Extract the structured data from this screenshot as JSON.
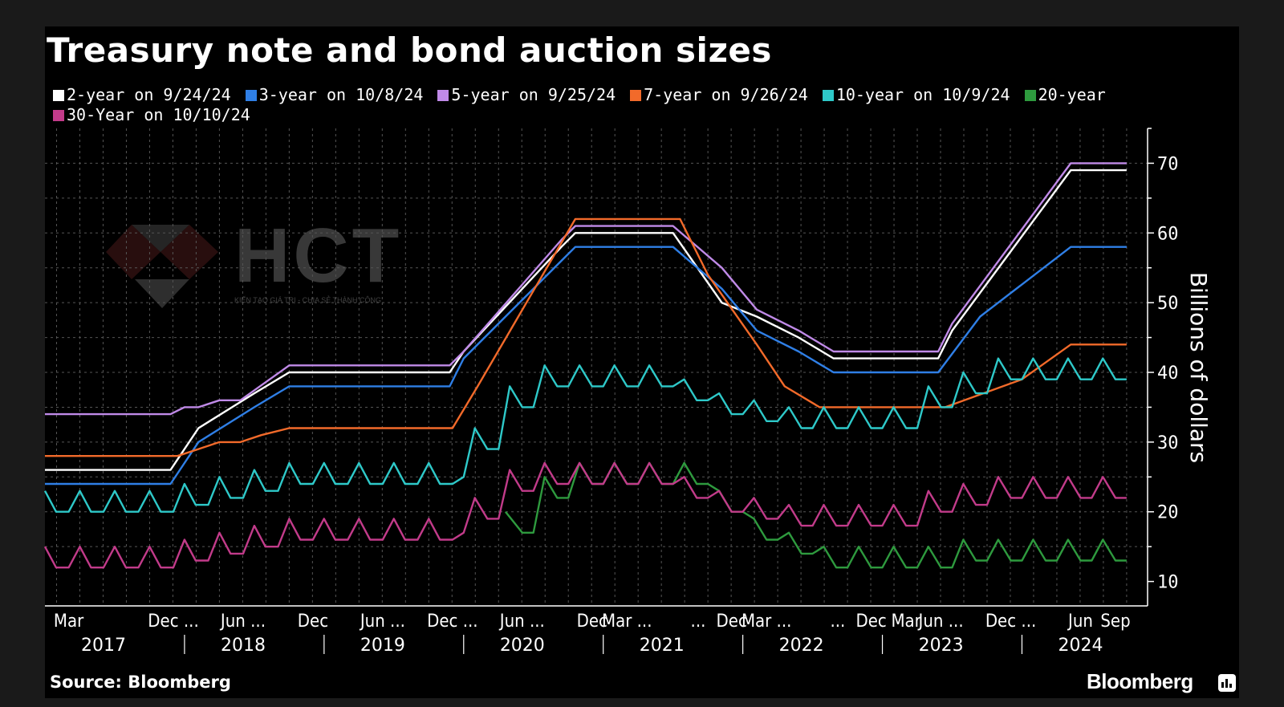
{
  "title": "Treasury note and bond auction sizes",
  "source": "Source: Bloomberg",
  "brand": "Bloomberg",
  "watermark": {
    "text": "HCT",
    "subtitle": "KIẾN TẠO GIÁ TRỊ - CHIA SẺ THÀNH CÔNG"
  },
  "chart_data": {
    "type": "line",
    "ylabel": "Billions of dollars",
    "ylim": [
      6.5,
      75
    ],
    "xlim": [
      2017.0,
      2024.9
    ],
    "yticks": [
      10,
      20,
      30,
      40,
      50,
      60,
      70
    ],
    "grid": true,
    "legend_position": "top",
    "x_tick_labels": [
      {
        "x": 2017.17,
        "label": "Mar"
      },
      {
        "x": 2017.92,
        "label": "Dec ..."
      },
      {
        "x": 2018.42,
        "label": "Jun ..."
      },
      {
        "x": 2018.92,
        "label": "Dec"
      },
      {
        "x": 2019.42,
        "label": "Jun ..."
      },
      {
        "x": 2019.92,
        "label": "Dec ..."
      },
      {
        "x": 2020.42,
        "label": "Jun ..."
      },
      {
        "x": 2020.92,
        "label": "Dec"
      },
      {
        "x": 2021.17,
        "label": "Mar ..."
      },
      {
        "x": 2021.68,
        "label": "..."
      },
      {
        "x": 2021.92,
        "label": "Dec"
      },
      {
        "x": 2022.17,
        "label": "Mar ..."
      },
      {
        "x": 2022.68,
        "label": "..."
      },
      {
        "x": 2022.92,
        "label": "Dec"
      },
      {
        "x": 2023.17,
        "label": "Mar"
      },
      {
        "x": 2023.42,
        "label": "Jun ..."
      },
      {
        "x": 2023.92,
        "label": "Dec ..."
      },
      {
        "x": 2024.42,
        "label": "Jun"
      },
      {
        "x": 2024.67,
        "label": "Sep"
      }
    ],
    "year_labels": [
      {
        "x": 2017.42,
        "label": "2017"
      },
      {
        "x": 2018.42,
        "label": "2018"
      },
      {
        "x": 2019.42,
        "label": "2019"
      },
      {
        "x": 2020.42,
        "label": "2020"
      },
      {
        "x": 2021.42,
        "label": "2021"
      },
      {
        "x": 2022.42,
        "label": "2022"
      },
      {
        "x": 2023.42,
        "label": "2023"
      },
      {
        "x": 2024.42,
        "label": "2024"
      }
    ],
    "year_dividers": [
      2018.0,
      2019.0,
      2020.0,
      2021.0,
      2022.0,
      2023.0,
      2024.0
    ],
    "series": [
      {
        "name": "2-year on 9/24/24",
        "color": "#ffffff",
        "x": [
          2017.0,
          2017.9,
          2018.1,
          2018.5,
          2018.75,
          2019.9,
          2020.0,
          2020.7,
          2020.8,
          2021.5,
          2021.85,
          2022.1,
          2022.4,
          2022.65,
          2023.4,
          2023.5,
          2024.35,
          2024.75
        ],
        "y": [
          26,
          26,
          32,
          37,
          40,
          40,
          43,
          58,
          60,
          60,
          50,
          48,
          45,
          42,
          42,
          46,
          69,
          69
        ]
      },
      {
        "name": "3-year on 10/8/24",
        "color": "#2f7fe6",
        "x": [
          2017.0,
          2017.9,
          2018.1,
          2018.5,
          2018.75,
          2019.9,
          2020.0,
          2020.7,
          2020.8,
          2021.5,
          2021.85,
          2022.1,
          2022.4,
          2022.65,
          2023.4,
          2023.7,
          2024.35,
          2024.75
        ],
        "y": [
          24,
          24,
          30,
          35,
          38,
          38,
          42,
          56,
          58,
          58,
          52,
          46,
          43,
          40,
          40,
          48,
          58,
          58
        ]
      },
      {
        "name": "5-year on 9/25/24",
        "color": "#c08ae8",
        "x": [
          2017.0,
          2017.9,
          2018.0,
          2018.1,
          2018.25,
          2018.4,
          2018.75,
          2019.9,
          2020.0,
          2020.7,
          2020.8,
          2021.5,
          2021.85,
          2022.1,
          2022.4,
          2022.65,
          2023.4,
          2023.5,
          2024.35,
          2024.75
        ],
        "y": [
          34,
          34,
          35,
          35,
          36,
          36,
          41,
          41,
          43,
          59,
          61,
          61,
          55,
          49,
          46,
          43,
          43,
          47,
          70,
          70
        ]
      },
      {
        "name": "7-year on 9/26/24",
        "color": "#f26a2a",
        "x": [
          2017.0,
          2017.95,
          2018.1,
          2018.25,
          2018.4,
          2018.55,
          2018.75,
          2019.92,
          2020.1,
          2020.45,
          2020.8,
          2021.55,
          2021.75,
          2022.1,
          2022.3,
          2022.55,
          2023.45,
          2024.0,
          2024.35,
          2024.75
        ],
        "y": [
          28,
          28,
          29,
          30,
          30,
          31,
          32,
          32,
          38,
          50,
          62,
          62,
          54,
          44,
          38,
          35,
          35,
          39,
          44,
          44
        ]
      },
      {
        "name": "10-year on 10/9/24",
        "color": "#2ec9c9",
        "x": [
          2017.0,
          2017.08,
          2017.17,
          2017.25,
          2017.33,
          2017.42,
          2017.5,
          2017.58,
          2017.67,
          2017.75,
          2017.83,
          2017.92,
          2018.0,
          2018.08,
          2018.17,
          2018.25,
          2018.33,
          2018.42,
          2018.5,
          2018.58,
          2018.67,
          2018.75,
          2018.83,
          2018.92,
          2019.0,
          2019.08,
          2019.17,
          2019.25,
          2019.33,
          2019.42,
          2019.5,
          2019.58,
          2019.67,
          2019.75,
          2019.83,
          2019.92,
          2020.0,
          2020.08,
          2020.17,
          2020.25,
          2020.33,
          2020.42,
          2020.5,
          2020.58,
          2020.67,
          2020.75,
          2020.83,
          2020.92,
          2021.0,
          2021.08,
          2021.17,
          2021.25,
          2021.33,
          2021.42,
          2021.5,
          2021.58,
          2021.67,
          2021.75,
          2021.83,
          2021.92,
          2022.0,
          2022.08,
          2022.17,
          2022.25,
          2022.33,
          2022.42,
          2022.5,
          2022.58,
          2022.67,
          2022.75,
          2022.83,
          2022.92,
          2023.0,
          2023.08,
          2023.17,
          2023.25,
          2023.33,
          2023.42,
          2023.5,
          2023.58,
          2023.67,
          2023.75,
          2023.83,
          2023.92,
          2024.0,
          2024.08,
          2024.17,
          2024.25,
          2024.33,
          2024.42,
          2024.5,
          2024.58,
          2024.67,
          2024.75
        ],
        "y": [
          23,
          20,
          20,
          23,
          20,
          20,
          23,
          20,
          20,
          23,
          20,
          20,
          24,
          21,
          21,
          25,
          22,
          22,
          26,
          23,
          23,
          27,
          24,
          24,
          27,
          24,
          24,
          27,
          24,
          24,
          27,
          24,
          24,
          27,
          24,
          24,
          25,
          32,
          29,
          29,
          38,
          35,
          35,
          41,
          38,
          38,
          41,
          38,
          38,
          41,
          38,
          38,
          41,
          38,
          38,
          39,
          36,
          36,
          37,
          34,
          34,
          36,
          33,
          33,
          35,
          32,
          32,
          35,
          32,
          32,
          35,
          32,
          32,
          35,
          32,
          32,
          38,
          35,
          35,
          40,
          37,
          37,
          42,
          39,
          39,
          42,
          39,
          39,
          42,
          39,
          39,
          42,
          39,
          39
        ]
      },
      {
        "name": "20-year",
        "color": "#2e9a3e",
        "x": [
          2020.3,
          2020.42,
          2020.5,
          2020.58,
          2020.67,
          2020.75,
          2020.83,
          2020.92,
          2021.0,
          2021.08,
          2021.17,
          2021.25,
          2021.33,
          2021.42,
          2021.5,
          2021.58,
          2021.67,
          2021.75,
          2021.83,
          2021.92,
          2022.0,
          2022.08,
          2022.17,
          2022.25,
          2022.33,
          2022.42,
          2022.5,
          2022.58,
          2022.67,
          2022.75,
          2022.83,
          2022.92,
          2023.0,
          2023.08,
          2023.17,
          2023.25,
          2023.33,
          2023.42,
          2023.5,
          2023.58,
          2023.67,
          2023.75,
          2023.83,
          2023.92,
          2024.0,
          2024.08,
          2024.17,
          2024.25,
          2024.33,
          2024.42,
          2024.5,
          2024.58,
          2024.67,
          2024.75
        ],
        "y": [
          20,
          17,
          17,
          25,
          22,
          22,
          27,
          24,
          24,
          27,
          24,
          24,
          27,
          24,
          24,
          27,
          24,
          24,
          23,
          20,
          20,
          19,
          16,
          16,
          17,
          14,
          14,
          15,
          12,
          12,
          15,
          12,
          12,
          15,
          12,
          12,
          15,
          12,
          12,
          16,
          13,
          13,
          16,
          13,
          13,
          16,
          13,
          13,
          16,
          13,
          13,
          16,
          13,
          13
        ]
      },
      {
        "name": "30-Year on 10/10/24",
        "color": "#c23b8a",
        "x": [
          2017.0,
          2017.08,
          2017.17,
          2017.25,
          2017.33,
          2017.42,
          2017.5,
          2017.58,
          2017.67,
          2017.75,
          2017.83,
          2017.92,
          2018.0,
          2018.08,
          2018.17,
          2018.25,
          2018.33,
          2018.42,
          2018.5,
          2018.58,
          2018.67,
          2018.75,
          2018.83,
          2018.92,
          2019.0,
          2019.08,
          2019.17,
          2019.25,
          2019.33,
          2019.42,
          2019.5,
          2019.58,
          2019.67,
          2019.75,
          2019.83,
          2019.92,
          2020.0,
          2020.08,
          2020.17,
          2020.25,
          2020.33,
          2020.42,
          2020.5,
          2020.58,
          2020.67,
          2020.75,
          2020.83,
          2020.92,
          2021.0,
          2021.08,
          2021.17,
          2021.25,
          2021.33,
          2021.42,
          2021.5,
          2021.58,
          2021.67,
          2021.75,
          2021.83,
          2021.92,
          2022.0,
          2022.08,
          2022.17,
          2022.25,
          2022.33,
          2022.42,
          2022.5,
          2022.58,
          2022.67,
          2022.75,
          2022.83,
          2022.92,
          2023.0,
          2023.08,
          2023.17,
          2023.25,
          2023.33,
          2023.42,
          2023.5,
          2023.58,
          2023.67,
          2023.75,
          2023.83,
          2023.92,
          2024.0,
          2024.08,
          2024.17,
          2024.25,
          2024.33,
          2024.42,
          2024.5,
          2024.58,
          2024.67,
          2024.75
        ],
        "y": [
          15,
          12,
          12,
          15,
          12,
          12,
          15,
          12,
          12,
          15,
          12,
          12,
          16,
          13,
          13,
          17,
          14,
          14,
          18,
          15,
          15,
          19,
          16,
          16,
          19,
          16,
          16,
          19,
          16,
          16,
          19,
          16,
          16,
          19,
          16,
          16,
          17,
          22,
          19,
          19,
          26,
          23,
          23,
          27,
          24,
          24,
          27,
          24,
          24,
          27,
          24,
          24,
          27,
          24,
          24,
          25,
          22,
          22,
          23,
          20,
          20,
          22,
          19,
          19,
          21,
          18,
          18,
          21,
          18,
          18,
          21,
          18,
          18,
          21,
          18,
          18,
          23,
          20,
          20,
          24,
          21,
          21,
          25,
          22,
          22,
          25,
          22,
          22,
          25,
          22,
          22,
          25,
          22,
          22
        ]
      }
    ]
  }
}
